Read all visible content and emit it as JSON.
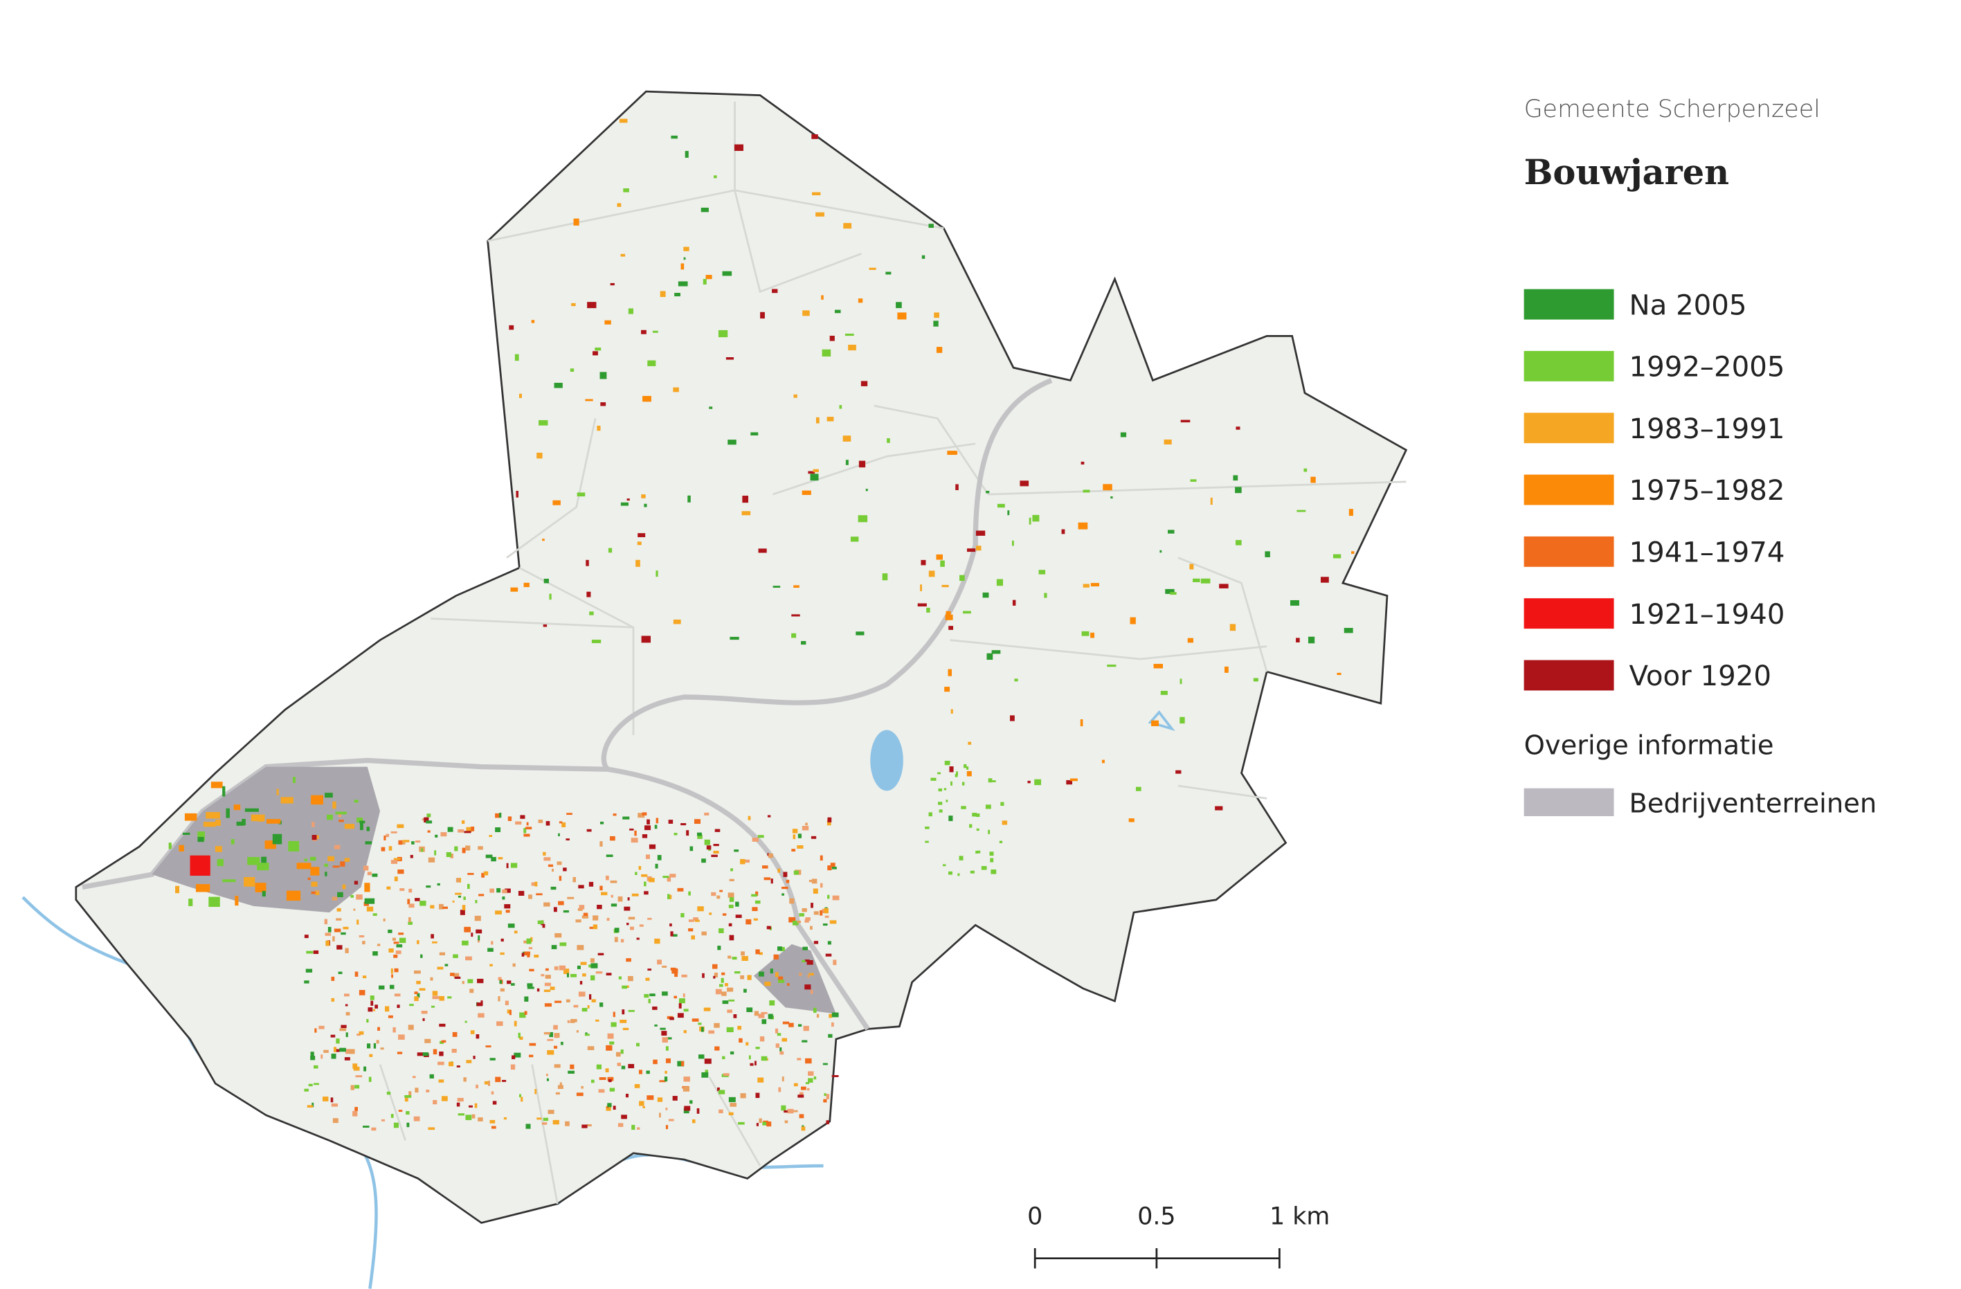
{
  "header": {
    "subtitle": "Gemeente Scherpenzeel",
    "title": "Bouwjaren"
  },
  "legend": {
    "items": [
      {
        "label": "Na 2005",
        "color": "#2e9b30"
      },
      {
        "label": "1992–2005",
        "color": "#76cc35"
      },
      {
        "label": "1983–1991",
        "color": "#f5a623"
      },
      {
        "label": "1975–1982",
        "color": "#fb8a09"
      },
      {
        "label": "1941–1974",
        "color": "#f06c1c"
      },
      {
        "label": "1921–1940",
        "color": "#f01414"
      },
      {
        "label": "Voor 1920",
        "color": "#ad1419"
      }
    ],
    "other_heading": "Overige informatie",
    "other_items": [
      {
        "label": "Bedrijventerreinen",
        "color": "#bdb9c1"
      }
    ]
  },
  "scale_bar": {
    "labels": [
      "0",
      "0.5",
      "1 km"
    ]
  }
}
